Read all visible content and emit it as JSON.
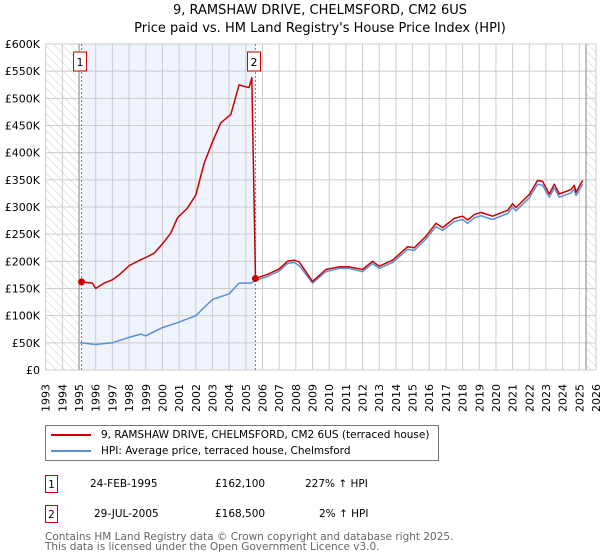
{
  "title": "9, RAMSHAW DRIVE, CHELMSFORD, CM2 6US",
  "subtitle": "Price paid vs. HM Land Registry's House Price Index (HPI)",
  "chart_data": {
    "type": "line",
    "title": "9, RAMSHAW DRIVE, CHELMSFORD, CM2 6US",
    "subtitle": "Price paid vs. HM Land Registry's House Price Index (HPI)",
    "xlim": [
      1993,
      2026
    ],
    "ylim": [
      0,
      600000
    ],
    "x_ticks": [
      "1993",
      "1994",
      "1995",
      "1996",
      "1997",
      "1998",
      "1999",
      "2000",
      "2001",
      "2002",
      "2003",
      "2004",
      "2005",
      "2006",
      "2007",
      "2008",
      "2009",
      "2010",
      "2011",
      "2012",
      "2013",
      "2014",
      "2015",
      "2016",
      "2017",
      "2018",
      "2019",
      "2020",
      "2021",
      "2022",
      "2023",
      "2024",
      "2025",
      "2026"
    ],
    "y_ticks": [
      {
        "v": 0,
        "label": "£0"
      },
      {
        "v": 50000,
        "label": "£50K"
      },
      {
        "v": 100000,
        "label": "£100K"
      },
      {
        "v": 150000,
        "label": "£150K"
      },
      {
        "v": 200000,
        "label": "£200K"
      },
      {
        "v": 250000,
        "label": "£250K"
      },
      {
        "v": 300000,
        "label": "£300K"
      },
      {
        "v": 350000,
        "label": "£350K"
      },
      {
        "v": 400000,
        "label": "£400K"
      },
      {
        "v": 450000,
        "label": "£450K"
      },
      {
        "v": 500000,
        "label": "£500K"
      },
      {
        "v": 550000,
        "label": "£550K"
      },
      {
        "v": 600000,
        "label": "£600K"
      }
    ],
    "grid": true,
    "hatched_before": 1995.0,
    "hatched_after": 2025.4,
    "shaded_between": [
      1995.15,
      2005.58
    ],
    "series": [
      {
        "name": "9, RAMSHAW DRIVE, CHELMSFORD, CM2 6US (terraced house)",
        "color": "#cc0000",
        "x": [
          1995.15,
          1995.8,
          1996.0,
          1996.5,
          1997.0,
          1997.4,
          1998.0,
          1998.7,
          1999.0,
          1999.5,
          2000.0,
          2000.5,
          2000.9,
          2001.5,
          2002.0,
          2002.5,
          2003.0,
          2003.5,
          2004.1,
          2004.6,
          2004.9,
          2005.2,
          2005.36,
          2005.58,
          2006.3,
          2007.0,
          2007.5,
          2007.9,
          2008.2,
          2009.0,
          2009.8,
          2010.6,
          2011.2,
          2012.0,
          2012.6,
          2013.0,
          2013.8,
          2014.7,
          2015.1,
          2015.8,
          2016.4,
          2016.8,
          2017.5,
          2018.0,
          2018.3,
          2018.7,
          2019.1,
          2019.8,
          2020.7,
          2021.0,
          2021.2,
          2022.0,
          2022.5,
          2022.8,
          2023.2,
          2023.5,
          2023.8,
          2024.5,
          2024.7,
          2024.8,
          2025.2
        ],
        "y": [
          162100,
          160000,
          150000,
          160000,
          166000,
          175000,
          192000,
          203000,
          207000,
          215000,
          232000,
          252000,
          280000,
          298000,
          322000,
          380000,
          420000,
          455000,
          470000,
          525000,
          522000,
          520000,
          538000,
          168500,
          176000,
          186000,
          200000,
          202000,
          199000,
          163000,
          185000,
          190000,
          190000,
          185000,
          200000,
          191000,
          202000,
          227000,
          225000,
          246000,
          270000,
          262000,
          279000,
          283000,
          276000,
          286000,
          290000,
          283000,
          294000,
          306000,
          299000,
          323000,
          349000,
          347000,
          324000,
          342000,
          324000,
          332000,
          340000,
          327000,
          349000
        ]
      },
      {
        "name": "HPI: Average price, terraced house, Chelmsford",
        "color": "#5b8fd4",
        "x": [
          1995.06,
          1996.0,
          1997.0,
          1998.0,
          1998.7,
          1999.0,
          2000.0,
          2000.9,
          2002.0,
          2002.5,
          2003.0,
          2004.0,
          2004.6,
          2005.3,
          2005.6,
          2006.3,
          2007.0,
          2007.5,
          2007.9,
          2008.2,
          2009.0,
          2009.8,
          2010.6,
          2011.2,
          2012.0,
          2012.6,
          2013.0,
          2013.8,
          2014.7,
          2015.1,
          2015.8,
          2016.4,
          2016.8,
          2017.5,
          2018.0,
          2018.3,
          2018.7,
          2019.1,
          2019.8,
          2020.7,
          2021.0,
          2021.2,
          2022.0,
          2022.5,
          2022.8,
          2023.2,
          2023.5,
          2023.8,
          2024.5,
          2024.7,
          2024.8,
          2025.2
        ],
        "y": [
          50000,
          47000,
          50000,
          60000,
          66000,
          63000,
          78000,
          87000,
          100000,
          115000,
          130000,
          140000,
          160000,
          160000,
          165000,
          172000,
          182000,
          196000,
          198000,
          192000,
          160000,
          181000,
          187000,
          187000,
          181000,
          196000,
          187000,
          198000,
          222000,
          220000,
          241000,
          264000,
          257000,
          273000,
          277000,
          270000,
          280000,
          284000,
          277000,
          288000,
          300000,
          293000,
          317000,
          342000,
          340000,
          318000,
          335000,
          318000,
          326000,
          333000,
          321000,
          342000
        ]
      }
    ],
    "sales": [
      {
        "label": "1",
        "x": 1995.15,
        "y": 162100
      },
      {
        "label": "2",
        "x": 2005.58,
        "y": 168500
      }
    ]
  },
  "legend": {
    "items": [
      {
        "label": "9, RAMSHAW DRIVE, CHELMSFORD, CM2 6US (terraced house)",
        "color": "#cc0000"
      },
      {
        "label": "HPI: Average price, terraced house, Chelmsford",
        "color": "#5b8fd4"
      }
    ]
  },
  "transactions": [
    {
      "num": "1",
      "date": "24-FEB-1995",
      "price": "£162,100",
      "hpi": "227% ↑ HPI"
    },
    {
      "num": "2",
      "date": "29-JUL-2005",
      "price": "£168,500",
      "hpi": "2% ↑ HPI"
    }
  ],
  "footer": {
    "line1": "Contains HM Land Registry data © Crown copyright and database right 2025.",
    "line2": "This data is licensed under the Open Government Licence v3.0."
  }
}
